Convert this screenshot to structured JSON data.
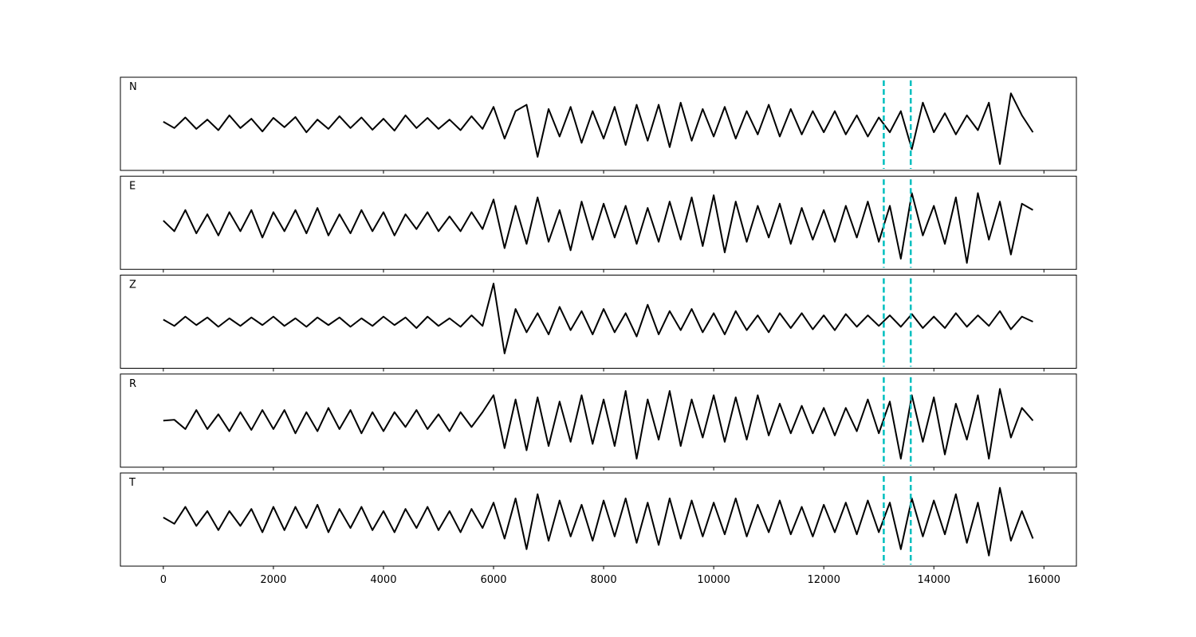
{
  "chart_data": {
    "type": "line",
    "x": [
      0,
      200,
      400,
      600,
      800,
      1000,
      1200,
      1400,
      1600,
      1800,
      2000,
      2200,
      2400,
      2600,
      2800,
      3000,
      3200,
      3400,
      3600,
      3800,
      4000,
      4200,
      4400,
      4600,
      4800,
      5000,
      5200,
      5400,
      5600,
      5800,
      6000,
      6200,
      6400,
      6600,
      6800,
      7000,
      7200,
      7400,
      7600,
      7800,
      8000,
      8200,
      8400,
      8600,
      8800,
      9000,
      9200,
      9400,
      9600,
      9800,
      10000,
      10200,
      10400,
      10600,
      10800,
      11000,
      11200,
      11400,
      11600,
      11800,
      12000,
      12200,
      12400,
      12600,
      12800,
      13000,
      13200,
      13400,
      13600,
      13800,
      14000,
      14200,
      14400,
      14600,
      14800,
      15000,
      15200,
      15400,
      15600,
      15800
    ],
    "series": [
      {
        "name": "N",
        "color": "#000000",
        "values": [
          0.05,
          -0.1,
          0.15,
          -0.12,
          0.1,
          -0.15,
          0.2,
          -0.1,
          0.12,
          -0.18,
          0.14,
          -0.08,
          0.16,
          -0.2,
          0.1,
          -0.12,
          0.18,
          -0.1,
          0.15,
          -0.14,
          0.12,
          -0.16,
          0.2,
          -0.1,
          0.14,
          -0.12,
          0.1,
          -0.15,
          0.18,
          -0.12,
          0.4,
          -0.35,
          0.3,
          0.45,
          -0.78,
          0.35,
          -0.3,
          0.4,
          -0.45,
          0.3,
          -0.35,
          0.4,
          -0.5,
          0.45,
          -0.4,
          0.45,
          -0.55,
          0.5,
          -0.4,
          0.35,
          -0.3,
          0.4,
          -0.35,
          0.3,
          -0.25,
          0.45,
          -0.3,
          0.35,
          -0.25,
          0.3,
          -0.2,
          0.3,
          -0.25,
          0.2,
          -0.3,
          0.15,
          -0.2,
          0.3,
          -0.6,
          0.5,
          -0.2,
          0.25,
          -0.25,
          0.2,
          -0.15,
          0.5,
          -0.95,
          0.72,
          0.2,
          -0.2
        ]
      },
      {
        "name": "E",
        "color": "#000000",
        "values": [
          0.05,
          -0.2,
          0.3,
          -0.25,
          0.2,
          -0.3,
          0.25,
          -0.2,
          0.3,
          -0.35,
          0.25,
          -0.2,
          0.3,
          -0.25,
          0.35,
          -0.3,
          0.2,
          -0.25,
          0.3,
          -0.2,
          0.25,
          -0.3,
          0.2,
          -0.15,
          0.25,
          -0.2,
          0.15,
          -0.2,
          0.25,
          -0.15,
          0.55,
          -0.6,
          0.4,
          -0.5,
          0.6,
          -0.45,
          0.3,
          -0.65,
          0.5,
          -0.4,
          0.45,
          -0.35,
          0.4,
          -0.5,
          0.35,
          -0.45,
          0.5,
          -0.4,
          0.6,
          -0.55,
          0.65,
          -0.7,
          0.5,
          -0.45,
          0.4,
          -0.35,
          0.45,
          -0.5,
          0.35,
          -0.4,
          0.3,
          -0.45,
          0.4,
          -0.35,
          0.5,
          -0.45,
          0.4,
          -0.85,
          0.7,
          -0.3,
          0.4,
          -0.5,
          0.6,
          -0.95,
          0.7,
          -0.4,
          0.5,
          -0.75,
          0.45,
          0.3
        ]
      },
      {
        "name": "Z",
        "color": "#000000",
        "values": [
          0.05,
          -0.1,
          0.12,
          -0.08,
          0.1,
          -0.12,
          0.08,
          -0.1,
          0.1,
          -0.08,
          0.12,
          -0.1,
          0.08,
          -0.12,
          0.1,
          -0.08,
          0.1,
          -0.12,
          0.08,
          -0.1,
          0.12,
          -0.08,
          0.1,
          -0.15,
          0.12,
          -0.1,
          0.08,
          -0.12,
          0.15,
          -0.1,
          0.9,
          -0.75,
          0.3,
          -0.25,
          0.2,
          -0.3,
          0.35,
          -0.2,
          0.25,
          -0.3,
          0.3,
          -0.25,
          0.2,
          -0.35,
          0.4,
          -0.3,
          0.25,
          -0.2,
          0.3,
          -0.25,
          0.2,
          -0.3,
          0.25,
          -0.2,
          0.15,
          -0.25,
          0.2,
          -0.15,
          0.2,
          -0.18,
          0.15,
          -0.2,
          0.18,
          -0.12,
          0.15,
          -0.1,
          0.15,
          -0.12,
          0.18,
          -0.15,
          0.12,
          -0.15,
          0.2,
          -0.12,
          0.15,
          -0.1,
          0.25,
          -0.18,
          0.12,
          0.0
        ]
      },
      {
        "name": "R",
        "color": "#000000",
        "values": [
          0.0,
          0.02,
          -0.2,
          0.25,
          -0.2,
          0.15,
          -0.25,
          0.2,
          -0.22,
          0.25,
          -0.2,
          0.25,
          -0.3,
          0.2,
          -0.25,
          0.3,
          -0.2,
          0.25,
          -0.3,
          0.2,
          -0.25,
          0.2,
          -0.15,
          0.25,
          -0.2,
          0.15,
          -0.25,
          0.2,
          -0.15,
          0.2,
          0.6,
          -0.65,
          0.5,
          -0.7,
          0.55,
          -0.6,
          0.45,
          -0.5,
          0.6,
          -0.55,
          0.5,
          -0.6,
          0.7,
          -0.9,
          0.5,
          -0.45,
          0.7,
          -0.6,
          0.5,
          -0.4,
          0.6,
          -0.5,
          0.55,
          -0.45,
          0.6,
          -0.35,
          0.4,
          -0.3,
          0.35,
          -0.3,
          0.3,
          -0.35,
          0.3,
          -0.25,
          0.5,
          -0.3,
          0.45,
          -0.9,
          0.6,
          -0.5,
          0.55,
          -0.8,
          0.4,
          -0.45,
          0.6,
          -0.9,
          0.75,
          -0.4,
          0.3,
          0.0
        ]
      },
      {
        "name": "T",
        "color": "#000000",
        "values": [
          0.05,
          -0.1,
          0.3,
          -0.15,
          0.2,
          -0.25,
          0.2,
          -0.15,
          0.25,
          -0.3,
          0.3,
          -0.25,
          0.3,
          -0.2,
          0.35,
          -0.3,
          0.25,
          -0.2,
          0.3,
          -0.25,
          0.2,
          -0.3,
          0.25,
          -0.2,
          0.3,
          -0.25,
          0.2,
          -0.3,
          0.25,
          -0.2,
          0.4,
          -0.45,
          0.5,
          -0.7,
          0.6,
          -0.5,
          0.45,
          -0.4,
          0.35,
          -0.5,
          0.45,
          -0.4,
          0.5,
          -0.55,
          0.4,
          -0.6,
          0.5,
          -0.45,
          0.45,
          -0.4,
          0.4,
          -0.35,
          0.5,
          -0.4,
          0.35,
          -0.3,
          0.45,
          -0.35,
          0.3,
          -0.4,
          0.35,
          -0.3,
          0.4,
          -0.35,
          0.45,
          -0.3,
          0.4,
          -0.7,
          0.5,
          -0.4,
          0.45,
          -0.35,
          0.6,
          -0.55,
          0.4,
          -0.85,
          0.75,
          -0.5,
          0.2,
          -0.45
        ]
      }
    ],
    "xlim": [
      -780,
      16590
    ],
    "xticks": [
      0,
      2000,
      4000,
      6000,
      8000,
      10000,
      12000,
      14000,
      16000
    ],
    "ylim": [
      -1.1,
      1.1
    ],
    "vlines": [
      13090,
      13580
    ],
    "vline_color": "#00bfbf"
  }
}
